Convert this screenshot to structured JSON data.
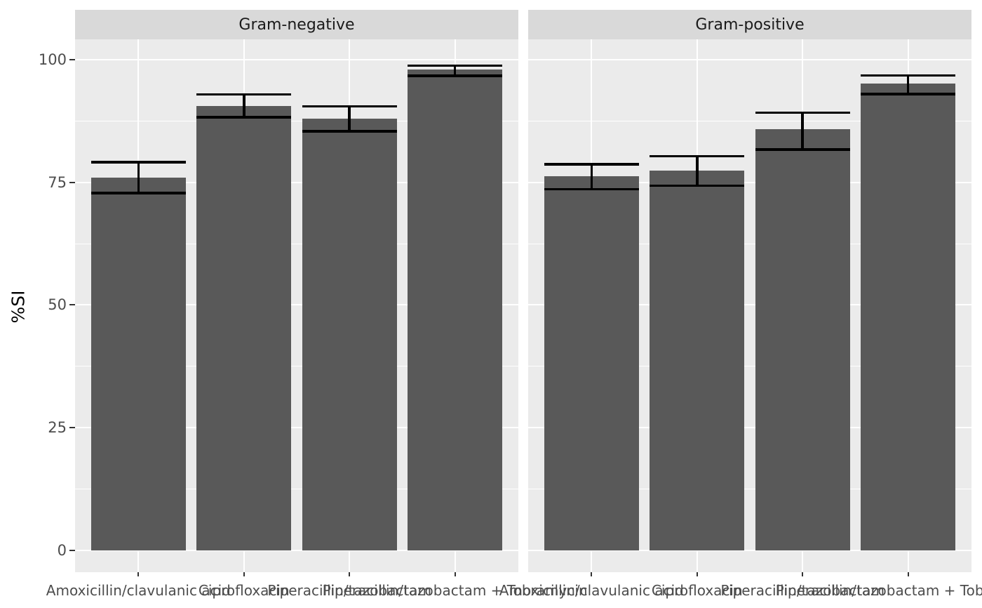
{
  "chart_data": {
    "type": "bar",
    "title": "",
    "ylabel": "%SI",
    "xlabel": "",
    "ylim": [
      0,
      100
    ],
    "yticks": [
      0,
      25,
      50,
      75,
      100
    ],
    "grid": "white major and minor horizontal gridlines, white vertical gridlines at category centers, on gray panel",
    "legend": "none",
    "categories": [
      "Amoxicillin/clavulanic acid",
      "Ciprofloxacin",
      "Piperacillin/tazobactam",
      "Piperacillin/tazobactam + Tobramycin"
    ],
    "facets": [
      {
        "label": "Gram-negative",
        "values": [
          76.0,
          90.6,
          88.0,
          98.0
        ],
        "error_low": [
          72.8,
          88.3,
          85.4,
          96.7
        ],
        "error_high": [
          79.1,
          92.9,
          90.5,
          98.8
        ]
      },
      {
        "label": "Gram-positive",
        "values": [
          76.2,
          77.4,
          85.8,
          95.1
        ],
        "error_low": [
          73.6,
          74.3,
          81.7,
          93.0
        ],
        "error_high": [
          78.7,
          80.3,
          89.2,
          96.8
        ]
      }
    ],
    "colors": {
      "bar_fill": "#595959",
      "errorbar": "#000000",
      "panel_bg": "#EBEBEB",
      "strip_bg": "#D9D9D9",
      "gridline": "#FFFFFF",
      "axis_text": "#4D4D4D",
      "strip_text": "#1A1A1A",
      "axis_title": "#000000"
    }
  }
}
